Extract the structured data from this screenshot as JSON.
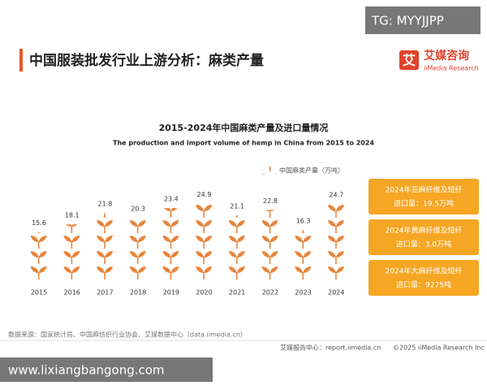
{
  "header": {
    "title": "中国服装批发行业上游分析：麻类产量",
    "logo": "艾媒咨询",
    "logo_sub": "iiMedia Research"
  },
  "chart_data": {
    "type": "pictogram",
    "title": "2015-2024年中国麻类产量及进口量情况",
    "subtitle": "The production and import volume of hemp in China from 2015 to 2024",
    "categories": [
      "2015",
      "2016",
      "2017",
      "2018",
      "2019",
      "2020",
      "2021",
      "2022",
      "2023",
      "2024"
    ],
    "series": [
      {
        "name": "中国麻类产量（万吨）",
        "color": "#e8843a",
        "values": [
          15.6,
          18.1,
          21.8,
          20.3,
          23.4,
          24.9,
          21.1,
          22.8,
          16.3,
          24.7
        ]
      }
    ]
  },
  "notes": [
    {
      "title": "2024年亚麻纤维及短纤",
      "text": "进口量：19.5万吨"
    },
    {
      "title": "2024年黄麻纤维及短纤",
      "text": "进口量：3.0万吨"
    },
    {
      "title": "2024年大麻纤维及短纤",
      "text": "进口量：9275吨"
    }
  ],
  "source": "数据来源：国家统计局、中国麻纺织行业协会、艾媒数据中心（data.iimedia.cn）",
  "footer": {
    "left": "艾媒报告中心：report.iimedia.cn",
    "right": "©2025  iiMedia Research  Inc"
  },
  "watermarks": [
    "TG: MYYJJPP",
    "www.lixiangbangong.com"
  ]
}
